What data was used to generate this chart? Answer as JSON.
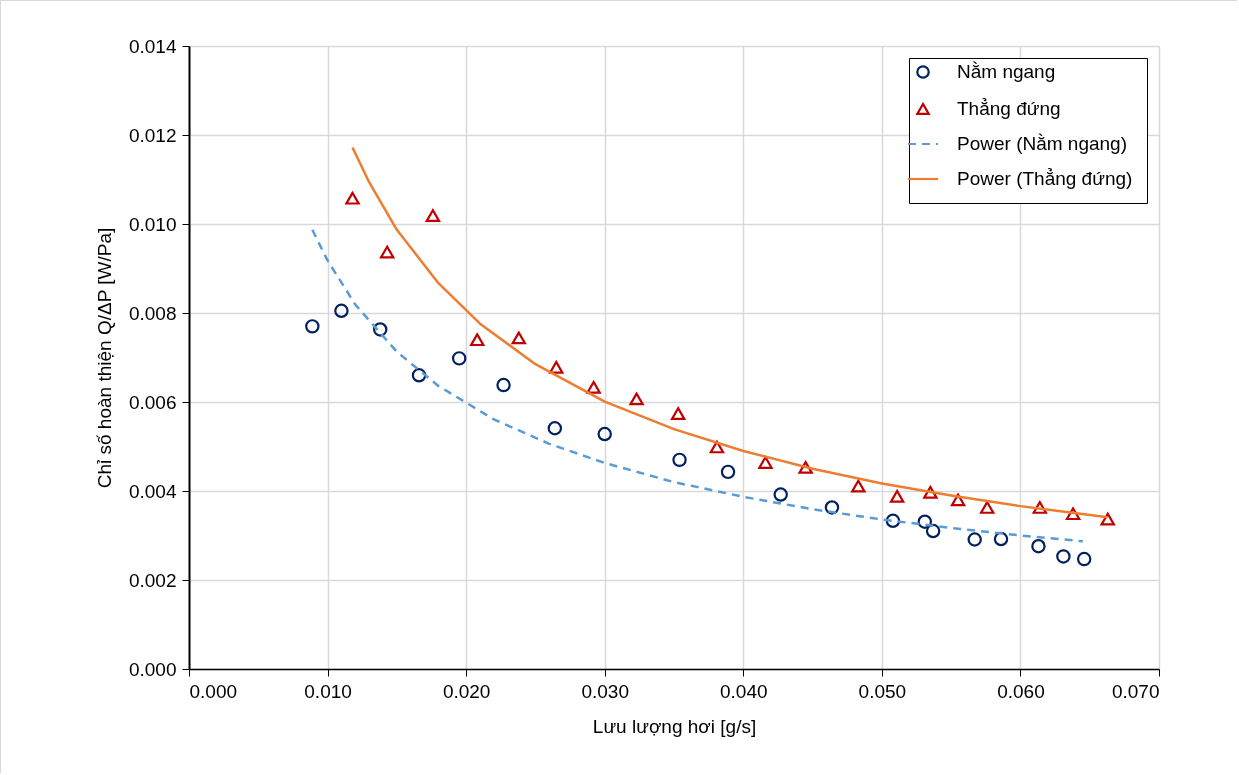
{
  "chart_data": {
    "type": "scatter",
    "xlabel": "Lưu lượng hơi [g/s]",
    "ylabel": "Chỉ số hoàn thiện Q/ΔP  [W/Pa]",
    "xlim": [
      0,
      0.07
    ],
    "ylim": [
      0,
      0.014
    ],
    "xticks": [
      {
        "value": 0,
        "label": "0.000"
      },
      {
        "value": 0.01,
        "label": "0.010"
      },
      {
        "value": 0.02,
        "label": "0.020"
      },
      {
        "value": 0.03,
        "label": "0.030"
      },
      {
        "value": 0.04,
        "label": "0.040"
      },
      {
        "value": 0.05,
        "label": "0.050"
      },
      {
        "value": 0.06,
        "label": "0.060"
      },
      {
        "value": 0.07,
        "label": "0.070"
      }
    ],
    "yticks": [
      {
        "value": 0,
        "label": "0.000"
      },
      {
        "value": 0.002,
        "label": "0.002"
      },
      {
        "value": 0.004,
        "label": "0.004"
      },
      {
        "value": 0.006,
        "label": "0.006"
      },
      {
        "value": 0.008,
        "label": "0.008"
      },
      {
        "value": 0.01,
        "label": "0.010"
      },
      {
        "value": 0.012,
        "label": "0.012"
      },
      {
        "value": 0.014,
        "label": "0.014"
      }
    ],
    "grid": true,
    "legend": "top right",
    "series": [
      {
        "name": "Nằm ngang",
        "type": "scatter",
        "marker": "circle",
        "color": "#002060",
        "x": [
          0.0089,
          0.011,
          0.0138,
          0.0166,
          0.0195,
          0.0227,
          0.0264,
          0.03,
          0.0354,
          0.0389,
          0.0427,
          0.0464,
          0.0508,
          0.0531,
          0.0537,
          0.0567,
          0.0586,
          0.0613,
          0.0631,
          0.0646
        ],
        "values": [
          0.0077,
          0.00805,
          0.00763,
          0.0066,
          0.00698,
          0.00638,
          0.00541,
          0.00528,
          0.0047,
          0.00443,
          0.00392,
          0.00363,
          0.00333,
          0.00331,
          0.0031,
          0.00291,
          0.00292,
          0.00276,
          0.00253,
          0.00247
        ]
      },
      {
        "name": "Thẳng đứng",
        "type": "scatter",
        "marker": "triangle",
        "color": "#c00000",
        "x": [
          0.0118,
          0.0143,
          0.0176,
          0.0208,
          0.0238,
          0.0265,
          0.0292,
          0.0323,
          0.0353,
          0.0381,
          0.0416,
          0.0445,
          0.0483,
          0.0511,
          0.0535,
          0.0555,
          0.0576,
          0.0614,
          0.0638,
          0.0663
        ],
        "values": [
          0.01058,
          0.00937,
          0.01019,
          0.0074,
          0.00744,
          0.00678,
          0.00633,
          0.00607,
          0.00574,
          0.00499,
          0.00464,
          0.00453,
          0.00411,
          0.00388,
          0.00397,
          0.0038,
          0.00363,
          0.00363,
          0.00349,
          0.00337
        ]
      },
      {
        "name": "Power (Nằm ngang)",
        "type": "line",
        "line_style": "dashed",
        "color": "#5b9bd5",
        "x": [
          0.0089,
          0.01,
          0.012,
          0.015,
          0.018,
          0.022,
          0.026,
          0.03,
          0.035,
          0.04,
          0.045,
          0.05,
          0.055,
          0.06,
          0.0645
        ],
        "values": [
          0.00987,
          0.00918,
          0.00819,
          0.00713,
          0.00636,
          0.00561,
          0.00506,
          0.00463,
          0.0042,
          0.00387,
          0.00359,
          0.00336,
          0.00317,
          0.003,
          0.00287
        ]
      },
      {
        "name": "Power (Thẳng đứng)",
        "type": "line",
        "line_style": "solid",
        "color": "#ed7d31",
        "x": [
          0.0118,
          0.013,
          0.015,
          0.018,
          0.021,
          0.025,
          0.03,
          0.035,
          0.04,
          0.045,
          0.05,
          0.055,
          0.06,
          0.0663
        ],
        "values": [
          0.01172,
          0.01094,
          0.00987,
          0.00867,
          0.00776,
          0.00685,
          0.00601,
          0.00539,
          0.0049,
          0.0045,
          0.00417,
          0.0039,
          0.00366,
          0.00341
        ]
      }
    ]
  }
}
